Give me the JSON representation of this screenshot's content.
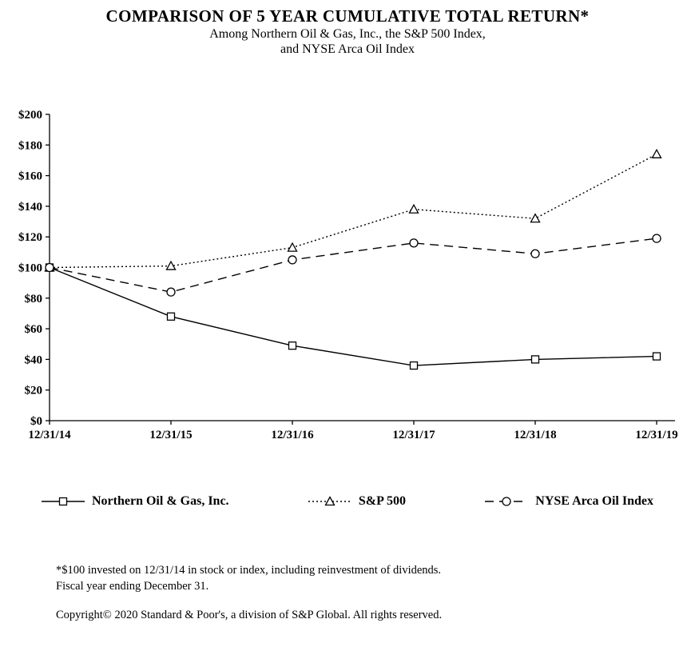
{
  "chart_data": {
    "type": "line",
    "title": "COMPARISON OF 5 YEAR CUMULATIVE  TOTAL RETURN*",
    "subtitle_line1": "Among Northern Oil & Gas, Inc., the S&P 500 Index,",
    "subtitle_line2": "and NYSE  Arca Oil Index",
    "categories": [
      "12/31/14",
      "12/31/15",
      "12/31/16",
      "12/31/17",
      "12/31/18",
      "12/31/19"
    ],
    "series": [
      {
        "name": "Northern Oil & Gas, Inc.",
        "marker": "square",
        "line": "solid",
        "values": [
          100,
          68,
          49,
          36,
          40,
          42
        ]
      },
      {
        "name": "S&P 500",
        "marker": "triangle",
        "line": "dotted",
        "values": [
          100,
          101,
          113,
          138,
          132,
          174
        ]
      },
      {
        "name": "NYSE Arca Oil Index",
        "marker": "circle",
        "line": "dashed",
        "values": [
          100,
          84,
          105,
          116,
          109,
          119
        ]
      }
    ],
    "ylim": [
      0,
      200
    ],
    "ytick_step": 20,
    "ytick_prefix": "$",
    "grid": false,
    "legend_position": "bottom",
    "line_color": "#000000"
  },
  "footnotes": {
    "line1": "*$100 invested on 12/31/14 in stock or index, including reinvestment of dividends.",
    "line2": "Fiscal year ending December 31.",
    "copyright": "Copyright© 2020 Standard & Poor's, a division of S&P Global. All rights reserved."
  }
}
